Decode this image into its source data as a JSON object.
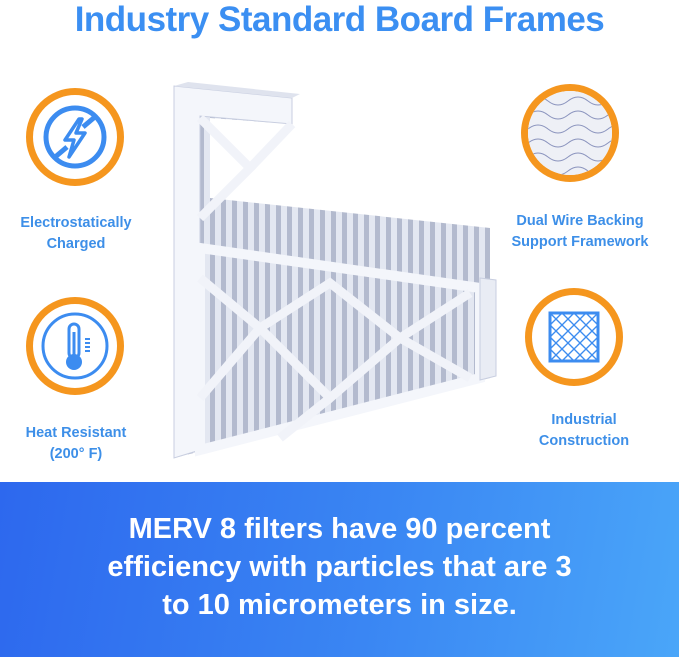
{
  "title": "Industry Standard Board Frames",
  "features": [
    {
      "icon": "no-static-bolt-icon",
      "line1": "Electrostatically",
      "line2": "Charged"
    },
    {
      "icon": "thermometer-icon",
      "line1": "Heat Resistant",
      "line2": "(200° F)"
    },
    {
      "icon": "wire-mesh-icon",
      "line1": "Dual Wire Backing",
      "line2": "Support Framework"
    },
    {
      "icon": "grid-frame-icon",
      "line1": "Industrial",
      "line2": "Construction"
    }
  ],
  "banner": {
    "line1": "MERV 8 filters have 90 percent",
    "line2": "efficiency with particles that are 3",
    "line3": "to 10 micrometers in size."
  },
  "colors": {
    "accent_blue": "#3b8ff2",
    "ring_orange": "#f5961e",
    "banner_start": "#2d68ee",
    "banner_end": "#4aa6f9"
  }
}
